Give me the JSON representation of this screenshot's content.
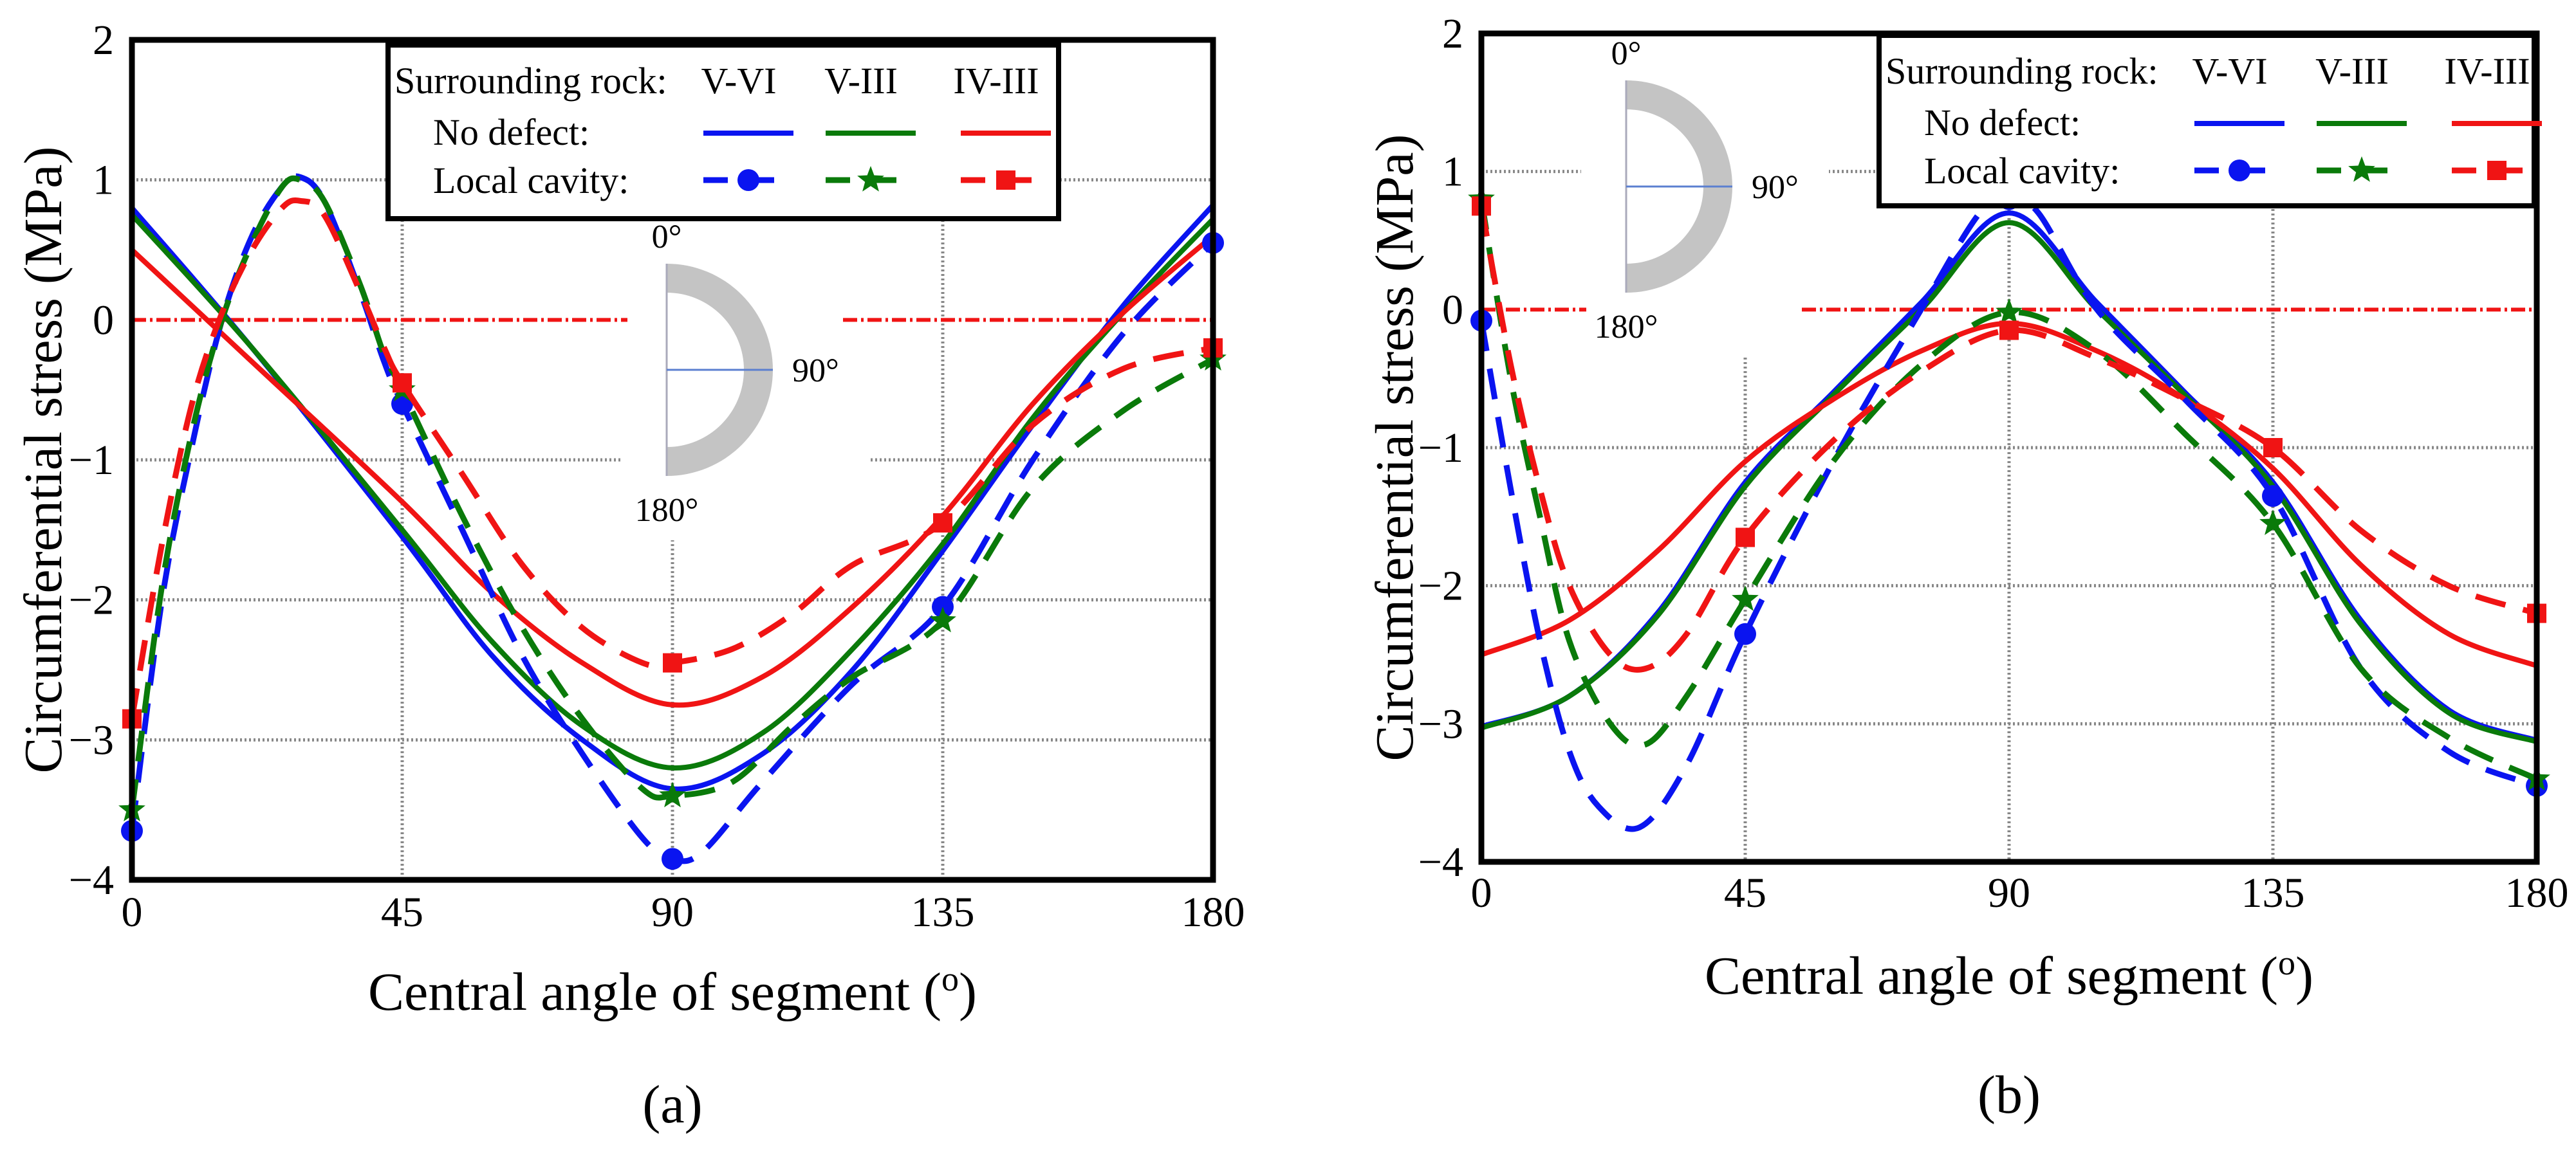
{
  "chart_data": [
    {
      "panel_label": "(a)",
      "type": "line",
      "xlabel": "Central angle of segment (o)",
      "ylabel": "Circumferential stress (MPa)",
      "xlim": [
        0,
        180
      ],
      "ylim": [
        -4,
        2
      ],
      "xticks": [
        "0",
        "45",
        "90",
        "135",
        "180"
      ],
      "yticks": [
        "2",
        "1",
        "0",
        "−1",
        "−2",
        "−3",
        "−4"
      ],
      "grid": true,
      "legend": {
        "placement": "top-center",
        "header": "Surrounding rock:",
        "columns": [
          "V-VI",
          "V-III",
          "IV-III"
        ],
        "rows": [
          "No defect:",
          "Local cavity:"
        ]
      },
      "inset": {
        "labels": [
          "0°",
          "90°",
          "180°"
        ]
      },
      "series": [
        {
          "name": "No defect V-VI",
          "color": "#0a14f0",
          "dashed": false,
          "marker": null,
          "x": [
            0,
            20,
            45,
            60,
            75,
            90,
            105,
            120,
            135,
            150,
            165,
            180
          ],
          "y": [
            0.8,
            -0.2,
            -1.55,
            -2.4,
            -3.0,
            -3.35,
            -3.1,
            -2.5,
            -1.65,
            -0.75,
            0.1,
            0.82
          ]
        },
        {
          "name": "No defect V-III",
          "color": "#0a7a0a",
          "dashed": false,
          "marker": null,
          "x": [
            0,
            20,
            45,
            60,
            75,
            90,
            105,
            120,
            135,
            150,
            165,
            180
          ],
          "y": [
            0.75,
            -0.2,
            -1.5,
            -2.3,
            -2.9,
            -3.2,
            -2.95,
            -2.35,
            -1.6,
            -0.7,
            0.05,
            0.72
          ]
        },
        {
          "name": "No defect IV-III",
          "color": "#f01414",
          "dashed": false,
          "marker": null,
          "x": [
            0,
            20,
            45,
            60,
            75,
            90,
            105,
            120,
            135,
            150,
            165,
            180
          ],
          "y": [
            0.5,
            -0.3,
            -1.3,
            -1.95,
            -2.45,
            -2.75,
            -2.55,
            -2.05,
            -1.4,
            -0.6,
            0.05,
            0.6
          ]
        },
        {
          "name": "Local cavity V-VI",
          "color": "#0a14f0",
          "dashed": true,
          "marker": "circle",
          "x": [
            0,
            5,
            10,
            15,
            20,
            25,
            28,
            32,
            38,
            42,
            45,
            55,
            65,
            75,
            85,
            90,
            95,
            105,
            120,
            135,
            150,
            165,
            180
          ],
          "y": [
            -3.65,
            -2.0,
            -0.9,
            0.0,
            0.6,
            0.95,
            1.02,
            0.85,
            0.2,
            -0.3,
            -0.6,
            -1.5,
            -2.4,
            -3.1,
            -3.7,
            -3.85,
            -3.8,
            -3.3,
            -2.6,
            -2.05,
            -1.0,
            -0.1,
            0.55
          ]
        },
        {
          "name": "Local cavity V-III",
          "color": "#0a7a0a",
          "dashed": true,
          "marker": "star",
          "x": [
            0,
            5,
            10,
            15,
            20,
            25,
            28,
            32,
            38,
            42,
            45,
            55,
            65,
            75,
            85,
            90,
            100,
            110,
            120,
            135,
            150,
            165,
            180
          ],
          "y": [
            -3.5,
            -1.9,
            -0.8,
            0.0,
            0.55,
            0.95,
            1.0,
            0.85,
            0.25,
            -0.25,
            -0.5,
            -1.4,
            -2.2,
            -2.85,
            -3.35,
            -3.4,
            -3.3,
            -2.9,
            -2.55,
            -2.15,
            -1.2,
            -0.65,
            -0.28
          ]
        },
        {
          "name": "Local cavity IV-III",
          "color": "#f01414",
          "dashed": true,
          "marker": "square",
          "x": [
            0,
            5,
            10,
            15,
            20,
            25,
            28,
            32,
            38,
            42,
            45,
            55,
            65,
            75,
            85,
            90,
            100,
            110,
            120,
            135,
            150,
            165,
            180
          ],
          "y": [
            -2.85,
            -1.6,
            -0.6,
            0.05,
            0.5,
            0.8,
            0.85,
            0.75,
            0.2,
            -0.2,
            -0.45,
            -1.1,
            -1.75,
            -2.2,
            -2.45,
            -2.45,
            -2.35,
            -2.1,
            -1.75,
            -1.45,
            -0.75,
            -0.35,
            -0.2
          ]
        }
      ]
    },
    {
      "panel_label": "(b)",
      "type": "line",
      "xlabel": "Central angle of segment (o)",
      "ylabel": "Circumferential stress (MPa)",
      "xlim": [
        0,
        180
      ],
      "ylim": [
        -4,
        2
      ],
      "xticks": [
        "0",
        "45",
        "90",
        "135",
        "180"
      ],
      "yticks": [
        "2",
        "1",
        "0",
        "−1",
        "−2",
        "−3",
        "−4"
      ],
      "grid": true,
      "legend": {
        "placement": "top-right",
        "header": "Surrounding rock:",
        "columns": [
          "V-VI",
          "V-III",
          "IV-III"
        ],
        "rows": [
          "No defect:",
          "Local cavity:"
        ]
      },
      "inset": {
        "labels": [
          "0°",
          "90°",
          "180°"
        ]
      },
      "series": [
        {
          "name": "No defect V-VI",
          "color": "#0a14f0",
          "dashed": false,
          "marker": null,
          "x": [
            0,
            15,
            30,
            45,
            60,
            75,
            90,
            105,
            120,
            135,
            150,
            165,
            180
          ],
          "y": [
            -3.02,
            -2.8,
            -2.2,
            -1.25,
            -0.6,
            0.05,
            0.7,
            0.05,
            -0.6,
            -1.25,
            -2.25,
            -2.9,
            -3.12
          ]
        },
        {
          "name": "No defect V-III",
          "color": "#0a7a0a",
          "dashed": false,
          "marker": null,
          "x": [
            0,
            15,
            30,
            45,
            60,
            75,
            90,
            105,
            120,
            135,
            150,
            165,
            180
          ],
          "y": [
            -3.03,
            -2.8,
            -2.22,
            -1.28,
            -0.62,
            0.0,
            0.63,
            0.0,
            -0.62,
            -1.28,
            -2.28,
            -2.92,
            -3.13
          ]
        },
        {
          "name": "No defect IV-III",
          "color": "#f01414",
          "dashed": false,
          "marker": null,
          "x": [
            0,
            15,
            30,
            45,
            60,
            75,
            90,
            105,
            120,
            135,
            150,
            165,
            180
          ],
          "y": [
            -2.5,
            -2.25,
            -1.75,
            -1.1,
            -0.65,
            -0.3,
            -0.1,
            -0.3,
            -0.65,
            -1.15,
            -1.85,
            -2.35,
            -2.58
          ]
        },
        {
          "name": "Local cavity V-VI",
          "color": "#0a14f0",
          "dashed": true,
          "marker": "circle",
          "x": [
            0,
            5,
            10,
            15,
            20,
            27,
            35,
            45,
            60,
            75,
            85,
            90,
            95,
            105,
            120,
            135,
            150,
            165,
            180
          ],
          "y": [
            -0.08,
            -1.3,
            -2.4,
            -3.2,
            -3.6,
            -3.75,
            -3.3,
            -2.35,
            -1.1,
            0.0,
            0.7,
            0.8,
            0.7,
            0.0,
            -0.65,
            -1.35,
            -2.6,
            -3.2,
            -3.45
          ]
        },
        {
          "name": "Local cavity V-III",
          "color": "#0a7a0a",
          "dashed": true,
          "marker": "star",
          "x": [
            0,
            5,
            10,
            15,
            22,
            28,
            35,
            45,
            60,
            75,
            90,
            105,
            120,
            135,
            150,
            165,
            180
          ],
          "y": [
            0.8,
            -0.5,
            -1.5,
            -2.4,
            -3.0,
            -3.15,
            -2.8,
            -2.1,
            -1.1,
            -0.4,
            -0.02,
            -0.3,
            -0.9,
            -1.55,
            -2.6,
            -3.1,
            -3.4
          ]
        },
        {
          "name": "Local cavity IV-III",
          "color": "#f01414",
          "dashed": true,
          "marker": "square",
          "x": [
            0,
            5,
            10,
            15,
            22,
            28,
            35,
            45,
            60,
            75,
            90,
            105,
            120,
            135,
            150,
            165,
            180
          ],
          "y": [
            0.75,
            -0.4,
            -1.3,
            -2.0,
            -2.5,
            -2.6,
            -2.35,
            -1.65,
            -0.95,
            -0.45,
            -0.15,
            -0.35,
            -0.65,
            -1.0,
            -1.6,
            -2.0,
            -2.2
          ]
        }
      ]
    }
  ]
}
